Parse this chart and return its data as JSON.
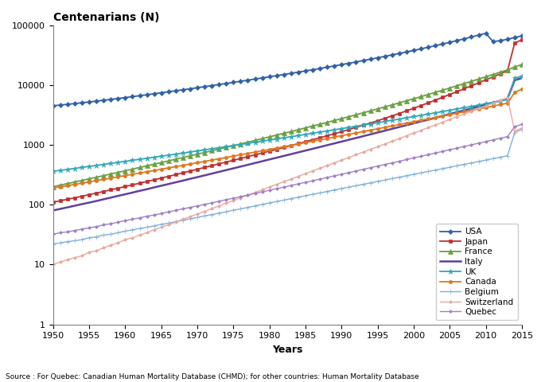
{
  "title": "Centenarians (N)",
  "xlabel": "Years",
  "source_text": "Source : For Quebec: Canadian Human Mortality Database (CHMD); for other countries: Human Mortality Database",
  "xlim": [
    1950,
    2015
  ],
  "yticks": [
    1,
    10,
    100,
    1000,
    10000,
    100000
  ],
  "ytick_labels": [
    "1",
    "10",
    "100",
    "1000",
    "10000",
    "100000"
  ],
  "xticks": [
    1950,
    1955,
    1960,
    1965,
    1970,
    1975,
    1980,
    1985,
    1990,
    1995,
    2000,
    2005,
    2010,
    2015
  ],
  "countries": [
    "USA",
    "Japan",
    "France",
    "Italy",
    "UK",
    "Canada",
    "Belgium",
    "Switzerland",
    "Quebec"
  ],
  "colors": {
    "USA": "#3060A8",
    "Japan": "#BF3030",
    "France": "#6AA040",
    "Italy": "#6040A0",
    "UK": "#30A8B8",
    "Canada": "#E07820",
    "Belgium": "#80B0D8",
    "Switzerland": "#E8A8A0",
    "Quebec": "#A080C8"
  },
  "markers": {
    "USA": "D",
    "Japan": "s",
    "France": "^",
    "Italy": "",
    "UK": "*",
    "Canada": "o",
    "Belgium": "+",
    "Switzerland": "D",
    "Quebec": "D"
  },
  "markersize": {
    "USA": 3,
    "Japan": 3,
    "France": 4,
    "Italy": 0,
    "UK": 5,
    "Canada": 3,
    "Belgium": 4,
    "Switzerland": 2,
    "Quebec": 2
  },
  "linewidth": {
    "USA": 1.3,
    "Japan": 1.3,
    "France": 1.3,
    "Italy": 1.5,
    "UK": 1.3,
    "Canada": 1.3,
    "Belgium": 1.0,
    "Switzerland": 1.0,
    "Quebec": 1.0
  },
  "USA_years": [
    1950,
    1951,
    1952,
    1953,
    1954,
    1955,
    1956,
    1957,
    1958,
    1959,
    1960,
    1961,
    1962,
    1963,
    1964,
    1965,
    1966,
    1967,
    1968,
    1969,
    1970,
    1971,
    1972,
    1973,
    1974,
    1975,
    1976,
    1977,
    1978,
    1979,
    1980,
    1981,
    1982,
    1983,
    1984,
    1985,
    1986,
    1987,
    1988,
    1989,
    1990,
    1991,
    1992,
    1993,
    1994,
    1995,
    1996,
    1997,
    1998,
    1999,
    2000,
    2001,
    2002,
    2003,
    2004,
    2005,
    2006,
    2007,
    2008,
    2009,
    2010,
    2011,
    2012,
    2013,
    2014,
    2015
  ],
  "USA_values": [
    4500,
    4620,
    4750,
    4890,
    5040,
    5200,
    5370,
    5550,
    5740,
    5940,
    6150,
    6380,
    6620,
    6870,
    7130,
    7400,
    7690,
    7990,
    8310,
    8640,
    9000,
    9370,
    9760,
    10170,
    10600,
    11050,
    11530,
    12030,
    12560,
    13120,
    13700,
    14320,
    14970,
    15660,
    16390,
    17170,
    18000,
    18880,
    19820,
    20820,
    21890,
    23030,
    24250,
    25560,
    26960,
    28460,
    30070,
    31800,
    33660,
    35660,
    37810,
    40130,
    42650,
    45390,
    48380,
    51650,
    55220,
    59130,
    63400,
    68050,
    73100,
    53000,
    55000,
    58000,
    62000,
    66000
  ],
  "Japan_years": [
    1950,
    1951,
    1952,
    1953,
    1954,
    1955,
    1956,
    1957,
    1958,
    1959,
    1960,
    1961,
    1962,
    1963,
    1964,
    1965,
    1966,
    1967,
    1968,
    1969,
    1970,
    1971,
    1972,
    1973,
    1974,
    1975,
    1976,
    1977,
    1978,
    1979,
    1980,
    1981,
    1982,
    1983,
    1984,
    1985,
    1986,
    1987,
    1988,
    1989,
    1990,
    1991,
    1992,
    1993,
    1994,
    1995,
    1996,
    1997,
    1998,
    1999,
    2000,
    2001,
    2002,
    2003,
    2004,
    2005,
    2006,
    2007,
    2008,
    2009,
    2010,
    2011,
    2012,
    2013,
    2014,
    2015
  ],
  "Japan_values": [
    110,
    116,
    123,
    130,
    138,
    147,
    156,
    166,
    177,
    188,
    201,
    214,
    228,
    244,
    260,
    278,
    297,
    318,
    340,
    364,
    390,
    418,
    448,
    480,
    514,
    551,
    591,
    634,
    680,
    730,
    783,
    841,
    904,
    972,
    1046,
    1127,
    1215,
    1311,
    1416,
    1531,
    1658,
    1798,
    1952,
    2124,
    2315,
    2529,
    2769,
    3040,
    3346,
    3692,
    4083,
    4524,
    5022,
    5585,
    6220,
    6936,
    7743,
    8655,
    9688,
    10857,
    12176,
    13661,
    15329,
    17195,
    50000,
    57000
  ],
  "France_years": [
    1950,
    1951,
    1952,
    1953,
    1954,
    1955,
    1956,
    1957,
    1958,
    1959,
    1960,
    1961,
    1962,
    1963,
    1964,
    1965,
    1966,
    1967,
    1968,
    1969,
    1970,
    1971,
    1972,
    1973,
    1974,
    1975,
    1976,
    1977,
    1978,
    1979,
    1980,
    1981,
    1982,
    1983,
    1984,
    1985,
    1986,
    1987,
    1988,
    1989,
    1990,
    1991,
    1992,
    1993,
    1994,
    1995,
    1996,
    1997,
    1998,
    1999,
    2000,
    2001,
    2002,
    2003,
    2004,
    2005,
    2006,
    2007,
    2008,
    2009,
    2010,
    2011,
    2012,
    2013,
    2014,
    2015
  ],
  "France_values": [
    200,
    212,
    225,
    239,
    254,
    270,
    287,
    305,
    325,
    346,
    368,
    392,
    418,
    445,
    474,
    505,
    538,
    574,
    612,
    653,
    697,
    744,
    794,
    849,
    907,
    969,
    1036,
    1108,
    1185,
    1268,
    1358,
    1454,
    1557,
    1668,
    1788,
    1917,
    2057,
    2208,
    2371,
    2548,
    2740,
    2949,
    3176,
    3423,
    3691,
    3983,
    4301,
    4648,
    5027,
    5440,
    5892,
    6387,
    6930,
    7526,
    8180,
    8900,
    9690,
    10560,
    11510,
    12560,
    13710,
    14970,
    16350,
    17860,
    20000,
    22000
  ],
  "Italy_years": [
    1950,
    1951,
    1952,
    1953,
    1954,
    1955,
    1956,
    1957,
    1958,
    1959,
    1960,
    1961,
    1962,
    1963,
    1964,
    1965,
    1966,
    1967,
    1968,
    1969,
    1970,
    1971,
    1972,
    1973,
    1974,
    1975,
    1976,
    1977,
    1978,
    1979,
    1980,
    1981,
    1982,
    1983,
    1984,
    1985,
    1986,
    1987,
    1988,
    1989,
    1990,
    1991,
    1992,
    1993,
    1994,
    1995,
    1996,
    1997,
    1998,
    1999,
    2000,
    2001,
    2002,
    2003,
    2004,
    2005,
    2006,
    2007,
    2008,
    2009,
    2010,
    2011,
    2012,
    2013,
    2014,
    2015
  ],
  "Italy_values": [
    80,
    85,
    90,
    96,
    102,
    108,
    115,
    123,
    131,
    140,
    149,
    159,
    170,
    181,
    194,
    207,
    221,
    236,
    252,
    270,
    288,
    308,
    330,
    353,
    378,
    404,
    433,
    463,
    496,
    531,
    569,
    609,
    652,
    698,
    748,
    801,
    858,
    919,
    985,
    1055,
    1130,
    1212,
    1299,
    1394,
    1495,
    1604,
    1721,
    1847,
    1982,
    2127,
    2283,
    2451,
    2631,
    2826,
    3036,
    3263,
    3508,
    3773,
    4060,
    4369,
    4704,
    5065,
    5454,
    5874,
    12000,
    13000
  ],
  "UK_years": [
    1950,
    1951,
    1952,
    1953,
    1954,
    1955,
    1956,
    1957,
    1958,
    1959,
    1960,
    1961,
    1962,
    1963,
    1964,
    1965,
    1966,
    1967,
    1968,
    1969,
    1970,
    1971,
    1972,
    1973,
    1974,
    1975,
    1976,
    1977,
    1978,
    1979,
    1980,
    1981,
    1982,
    1983,
    1984,
    1985,
    1986,
    1987,
    1988,
    1989,
    1990,
    1991,
    1992,
    1993,
    1994,
    1995,
    1996,
    1997,
    1998,
    1999,
    2000,
    2001,
    2002,
    2003,
    2004,
    2005,
    2006,
    2007,
    2008,
    2009,
    2010,
    2011,
    2012,
    2013,
    2014,
    2015
  ],
  "UK_values": [
    360,
    374,
    388,
    403,
    419,
    435,
    452,
    470,
    489,
    508,
    529,
    550,
    572,
    596,
    620,
    645,
    671,
    699,
    728,
    758,
    790,
    823,
    857,
    893,
    931,
    971,
    1013,
    1057,
    1103,
    1151,
    1201,
    1254,
    1309,
    1367,
    1428,
    1492,
    1559,
    1630,
    1704,
    1782,
    1864,
    1950,
    2041,
    2136,
    2236,
    2342,
    2453,
    2571,
    2695,
    2826,
    2964,
    3110,
    3264,
    3427,
    3599,
    3781,
    3973,
    4176,
    4391,
    4619,
    4861,
    5118,
    5392,
    5682,
    13000,
    14000
  ],
  "Canada_years": [
    1950,
    1951,
    1952,
    1953,
    1954,
    1955,
    1956,
    1957,
    1958,
    1959,
    1960,
    1961,
    1962,
    1963,
    1964,
    1965,
    1966,
    1967,
    1968,
    1969,
    1970,
    1971,
    1972,
    1973,
    1974,
    1975,
    1976,
    1977,
    1978,
    1979,
    1980,
    1981,
    1982,
    1983,
    1984,
    1985,
    1986,
    1987,
    1988,
    1989,
    1990,
    1991,
    1992,
    1993,
    1994,
    1995,
    1996,
    1997,
    1998,
    1999,
    2000,
    2001,
    2002,
    2003,
    2004,
    2005,
    2006,
    2007,
    2008,
    2009,
    2010,
    2011,
    2012,
    2013,
    2014,
    2015
  ],
  "Canada_values": [
    190,
    199,
    208,
    218,
    229,
    240,
    252,
    264,
    277,
    291,
    306,
    321,
    337,
    354,
    372,
    391,
    411,
    432,
    454,
    477,
    502,
    528,
    555,
    584,
    615,
    647,
    681,
    717,
    755,
    795,
    837,
    882,
    929,
    979,
    1032,
    1088,
    1147,
    1209,
    1275,
    1344,
    1418,
    1496,
    1578,
    1665,
    1757,
    1854,
    1957,
    2066,
    2181,
    2302,
    2430,
    2566,
    2709,
    2860,
    3020,
    3190,
    3369,
    3559,
    3760,
    3973,
    4200,
    4440,
    4694,
    4963,
    7500,
    8500
  ],
  "Belgium_years": [
    1950,
    1951,
    1952,
    1953,
    1954,
    1955,
    1956,
    1957,
    1958,
    1959,
    1960,
    1961,
    1962,
    1963,
    1964,
    1965,
    1966,
    1967,
    1968,
    1969,
    1970,
    1971,
    1972,
    1973,
    1974,
    1975,
    1976,
    1977,
    1978,
    1979,
    1980,
    1981,
    1982,
    1983,
    1984,
    1985,
    1986,
    1987,
    1988,
    1989,
    1990,
    1991,
    1992,
    1993,
    1994,
    1995,
    1996,
    1997,
    1998,
    1999,
    2000,
    2001,
    2002,
    2003,
    2004,
    2005,
    2006,
    2007,
    2008,
    2009,
    2010,
    2011,
    2012,
    2013,
    2014,
    2015
  ],
  "Belgium_values": [
    22,
    23,
    24,
    25,
    26,
    28,
    29,
    31,
    32,
    34,
    36,
    38,
    40,
    42,
    44,
    47,
    49,
    52,
    55,
    58,
    61,
    65,
    68,
    72,
    76,
    81,
    85,
    90,
    95,
    101,
    107,
    113,
    119,
    126,
    133,
    141,
    149,
    157,
    166,
    176,
    186,
    196,
    207,
    219,
    231,
    244,
    258,
    272,
    288,
    304,
    321,
    339,
    358,
    378,
    399,
    422,
    446,
    471,
    498,
    526,
    556,
    588,
    621,
    657,
    1600,
    1800
  ],
  "Switzerland_years": [
    1950,
    1951,
    1952,
    1953,
    1954,
    1955,
    1956,
    1957,
    1958,
    1959,
    1960,
    1961,
    1962,
    1963,
    1964,
    1965,
    1966,
    1967,
    1968,
    1969,
    1970,
    1971,
    1972,
    1973,
    1974,
    1975,
    1976,
    1977,
    1978,
    1979,
    1980,
    1981,
    1982,
    1983,
    1984,
    1985,
    1986,
    1987,
    1988,
    1989,
    1990,
    1991,
    1992,
    1993,
    1994,
    1995,
    1996,
    1997,
    1998,
    1999,
    2000,
    2001,
    2002,
    2003,
    2004,
    2005,
    2006,
    2007,
    2008,
    2009,
    2010,
    2011,
    2012,
    2013,
    2014,
    2015
  ],
  "Switzerland_values": [
    10,
    11,
    12,
    13,
    14,
    16,
    17,
    19,
    21,
    23,
    26,
    28,
    31,
    34,
    38,
    42,
    46,
    51,
    57,
    63,
    70,
    77,
    86,
    95,
    106,
    117,
    130,
    144,
    160,
    177,
    197,
    218,
    242,
    268,
    297,
    330,
    366,
    406,
    450,
    499,
    554,
    615,
    682,
    756,
    839,
    931,
    1033,
    1147,
    1273,
    1413,
    1569,
    1742,
    1934,
    2148,
    2385,
    2649,
    2943,
    3269,
    3631,
    4032,
    4478,
    4974,
    5523,
    6133,
    1700,
    1900
  ],
  "Quebec_years": [
    1950,
    1951,
    1952,
    1953,
    1954,
    1955,
    1956,
    1957,
    1958,
    1959,
    1960,
    1961,
    1962,
    1963,
    1964,
    1965,
    1966,
    1967,
    1968,
    1969,
    1970,
    1971,
    1972,
    1973,
    1974,
    1975,
    1976,
    1977,
    1978,
    1979,
    1980,
    1981,
    1982,
    1983,
    1984,
    1985,
    1986,
    1987,
    1988,
    1989,
    1990,
    1991,
    1992,
    1993,
    1994,
    1995,
    1996,
    1997,
    1998,
    1999,
    2000,
    2001,
    2002,
    2003,
    2004,
    2005,
    2006,
    2007,
    2008,
    2009,
    2010,
    2011,
    2012,
    2013,
    2014,
    2015
  ],
  "Quebec_values": [
    32,
    34,
    35,
    37,
    39,
    41,
    43,
    46,
    48,
    51,
    54,
    57,
    60,
    64,
    67,
    71,
    76,
    80,
    85,
    90,
    95,
    101,
    107,
    114,
    121,
    128,
    136,
    145,
    154,
    164,
    174,
    185,
    196,
    209,
    222,
    236,
    251,
    267,
    284,
    303,
    322,
    343,
    365,
    389,
    414,
    441,
    469,
    499,
    532,
    567,
    603,
    642,
    684,
    729,
    776,
    827,
    881,
    938,
    999,
    1064,
    1133,
    1207,
    1286,
    1370,
    2000,
    2200
  ]
}
